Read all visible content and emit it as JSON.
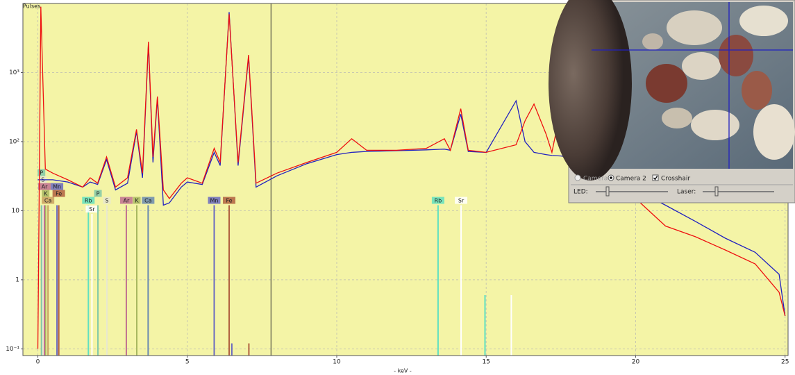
{
  "chart_data": {
    "type": "line",
    "ylabel": "Pulses",
    "xlabel": "- keV -",
    "log_y": true,
    "grid": true,
    "background": "#f4f4a6",
    "xlim": [
      -0.5,
      25.1
    ],
    "xticks": [
      0,
      5,
      10,
      15,
      20,
      25
    ],
    "ylim": [
      0.08,
      10000
    ],
    "yticks": [
      {
        "value": 0.1,
        "label": "10⁻¹"
      },
      1,
      10,
      {
        "value": 100,
        "label": "10²"
      },
      {
        "value": 1000,
        "label": "10³"
      }
    ],
    "cursor": 7.8,
    "x": [
      0,
      0.1,
      0.25,
      0.5,
      1,
      1.5,
      1.75,
      2,
      2.3,
      2.6,
      3,
      3.3,
      3.5,
      3.7,
      3.85,
      4,
      4.2,
      4.4,
      4.8,
      5,
      5.5,
      5.9,
      6.1,
      6.4,
      6.7,
      7.05,
      7.3,
      8,
      9,
      10,
      10.5,
      11,
      12,
      13,
      13.6,
      13.8,
      14.15,
      14.4,
      15,
      16,
      16.3,
      16.6,
      17,
      17.2,
      17.5,
      17.7,
      18,
      19,
      20,
      21,
      22,
      23,
      24,
      24.8,
      25
    ],
    "series": [
      {
        "color": "#2020c0",
        "values": [
          28,
          28,
          28,
          28,
          26,
          22,
          26,
          24,
          55,
          20,
          25,
          140,
          30,
          2600,
          50,
          420,
          12,
          13,
          22,
          26,
          24,
          70,
          45,
          7500,
          45,
          1700,
          22,
          32,
          48,
          65,
          70,
          72,
          74,
          76,
          78,
          75,
          250,
          72,
          70,
          390,
          100,
          70,
          65,
          63,
          62,
          60,
          55,
          40,
          20,
          12,
          7,
          4,
          2.5,
          1.2,
          0.3
        ]
      },
      {
        "color": "#ee1010",
        "values": [
          0.1,
          9000,
          40,
          35,
          28,
          22,
          30,
          25,
          60,
          22,
          30,
          150,
          35,
          2800,
          60,
          450,
          20,
          15,
          25,
          30,
          25,
          80,
          50,
          7000,
          50,
          1800,
          25,
          35,
          50,
          70,
          110,
          75,
          75,
          80,
          110,
          75,
          300,
          75,
          70,
          90,
          200,
          350,
          130,
          70,
          300,
          70,
          60,
          40,
          15,
          6,
          4.2,
          2.7,
          1.7,
          0.66,
          0.3
        ]
      }
    ],
    "element_lines": [
      {
        "name": "Ca",
        "energy": 0.34,
        "height": 12,
        "color": "#c8a060"
      },
      {
        "name": "Fe",
        "energy": 0.7,
        "height": 12,
        "color": "#b06040"
      },
      {
        "name": "K",
        "energy": 0.26,
        "height": 12,
        "color": "#a8b860"
      },
      {
        "name": "Mn",
        "energy": 0.64,
        "height": 12,
        "color": "#6a6ac0"
      },
      {
        "name": "Ar",
        "energy": 0.22,
        "height": 12,
        "color": "#c07090"
      },
      {
        "name": "S",
        "energy": 0.17,
        "height": 12,
        "color": "#e8e8d0"
      },
      {
        "name": "P",
        "energy": 0.12,
        "height": 12,
        "color": "#80c8a8"
      },
      {
        "name": "Rb",
        "energy": 1.69,
        "height": 12,
        "color": "#60e0c0"
      },
      {
        "name": "Sr",
        "energy": 1.81,
        "height": 9,
        "color": "#ffffff"
      },
      {
        "name": "P",
        "energy": 2.01,
        "height": 12,
        "color": "#80c8a8"
      },
      {
        "name": "S",
        "energy": 2.31,
        "height": 12,
        "color": "#e8e8d0"
      },
      {
        "name": "Ar",
        "energy": 2.96,
        "height": 12,
        "color": "#c07090"
      },
      {
        "name": "K",
        "energy": 3.31,
        "height": 12,
        "color": "#a8b860"
      },
      {
        "name": "Ca",
        "energy": 3.69,
        "height": 12,
        "color": "#6a8ab0"
      },
      {
        "name": "Mn",
        "energy": 5.9,
        "height": 12,
        "color": "#6a6ac0"
      },
      {
        "name": "Fe",
        "energy": 6.4,
        "height": 12,
        "color": "#b06040"
      },
      {
        "name": "Rb",
        "energy": 13.39,
        "height": 12,
        "color": "#60e0c0"
      },
      {
        "name": "Sr",
        "energy": 14.16,
        "height": 12,
        "color": "#ffffff"
      },
      {
        "name": null,
        "energy": 14.96,
        "height": 0.6,
        "color": "#60e0c0"
      },
      {
        "name": null,
        "energy": 15.84,
        "height": 0.6,
        "color": "#ffffff"
      },
      {
        "name": null,
        "energy": 7.06,
        "height": 0.12,
        "color": "#b06040"
      },
      {
        "name": null,
        "energy": 6.49,
        "height": 0.12,
        "color": "#6a6ac0"
      }
    ]
  },
  "camera_panel": {
    "options": [
      "Camera 1",
      "Camera 2",
      "Crosshair"
    ],
    "led_label": "LED:",
    "laser_label": "Laser:"
  }
}
